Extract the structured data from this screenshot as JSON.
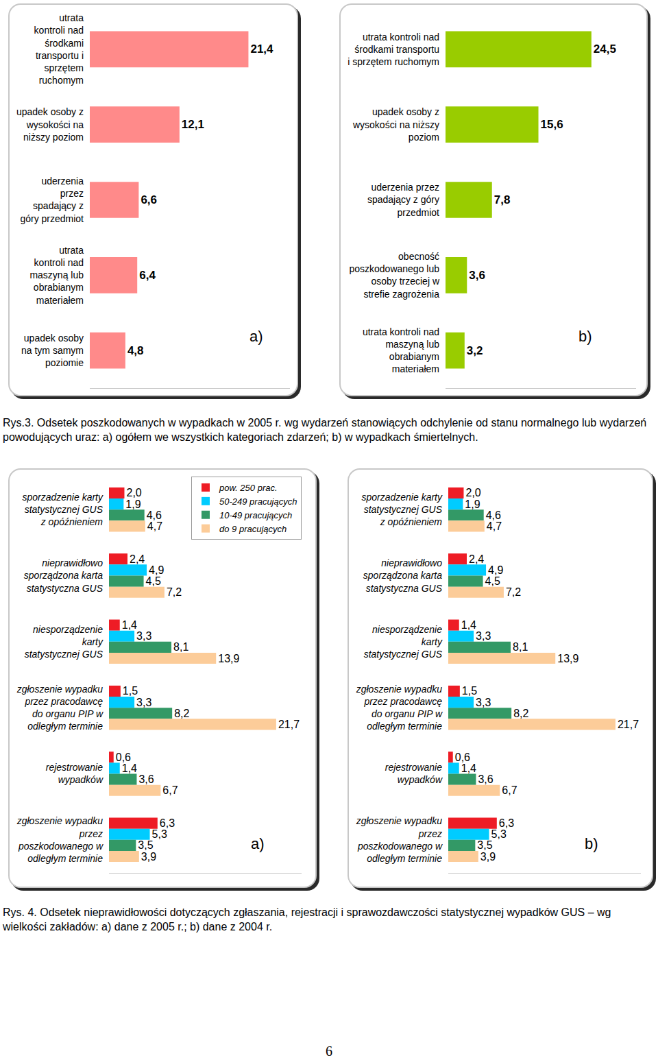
{
  "chart_data": [
    {
      "type": "bar",
      "orientation": "horizontal",
      "categories": [
        "utrata kontroli nad środkami transportu i sprzętem ruchomym",
        "upadek osoby z wysokości na niższy poziom",
        "uderzenia przez spadający z góry przedmiot",
        "utrata kontroli nad maszyną lub obrabianym materiałem",
        "upadek osoby na tym samym poziomie"
      ],
      "values": [
        21.4,
        12.1,
        6.6,
        6.4,
        4.8
      ],
      "value_labels": [
        "21,4",
        "12,1",
        "6,6",
        "6,4",
        "4,8"
      ],
      "color": "#ff8a8a",
      "xlim": [
        0,
        27
      ],
      "tick_labels": "y",
      "data_labels": true,
      "grid": false,
      "annotations": [
        "a)"
      ]
    },
    {
      "type": "bar",
      "orientation": "horizontal",
      "categories": [
        "utrata kontroli nad środkami transportu i sprzętem ruchomym",
        "upadek osoby z wysokości na niższy poziom",
        "uderzenia przez spadający z góry przedmiot",
        "obecność poszkodowanego lub osoby trzeciej w strefie zagrożenia",
        "utrata kontroli nad maszyną lub obrabianym materiałem"
      ],
      "values": [
        24.5,
        15.6,
        7.8,
        3.6,
        3.2
      ],
      "value_labels": [
        "24,5",
        "15,6",
        "7,8",
        "3,6",
        "3,2"
      ],
      "color": "#99cc00",
      "xlim": [
        0,
        32
      ],
      "tick_labels": "y",
      "data_labels": true,
      "grid": false,
      "annotations": [
        "b)"
      ]
    },
    {
      "type": "bar",
      "orientation": "horizontal",
      "categories": [
        "sporzadzenie karty statystycznej GUS z opóźnieniem",
        "nieprawidłowo sporządzona karta statystyczna GUS",
        "niesporządzenie karty statystycznej GUS",
        "zgłoszenie wypadku przez pracodawcę do organu PIP w odległym terminie",
        "rejestrowanie wypadków",
        "zgłoszenie wypadku przez poszkodowanego w odległym terminie"
      ],
      "series": [
        {
          "name": "pow. 250 prac.",
          "color": "#ee1c25",
          "values": [
            2.0,
            2.4,
            1.4,
            1.5,
            0.6,
            6.3
          ],
          "value_labels": [
            "2,0",
            "2,4",
            "1,4",
            "1,5",
            "0,6",
            "6,3"
          ]
        },
        {
          "name": "50-249 pracujących",
          "color": "#00ccff",
          "values": [
            1.9,
            4.9,
            3.3,
            3.3,
            1.4,
            5.3
          ],
          "value_labels": [
            "1,9",
            "4,9",
            "3,3",
            "3,3",
            "1,4",
            "5,3"
          ]
        },
        {
          "name": "10-49 pracujących",
          "color": "#339966",
          "values": [
            4.6,
            4.5,
            8.1,
            8.2,
            3.6,
            3.5
          ],
          "value_labels": [
            "4,6",
            "4,5",
            "8,1",
            "8,2",
            "3,6",
            "3,5"
          ]
        },
        {
          "name": "do 9 pracujących",
          "color": "#fccc99",
          "values": [
            4.7,
            7.2,
            13.9,
            21.7,
            6.7,
            3.9
          ],
          "value_labels": [
            "4,7",
            "7,2",
            "13,9",
            "21,7",
            "6,7",
            "3,9"
          ]
        }
      ],
      "xlim": [
        0,
        25
      ],
      "tick_labels": "y",
      "data_labels": true,
      "grid": false,
      "legend": "top right",
      "annotations": [
        "a)"
      ]
    },
    {
      "type": "bar",
      "orientation": "horizontal",
      "categories": [
        "sporzadzenie karty statystycznej GUS z opóźnieniem",
        "nieprawidłowo sporządzona karta statystyczna GUS",
        "niesporządzenie karty statystycznej GUS",
        "zgłoszenie wypadku przez pracodawcę do organu PIP w odległym terminie",
        "rejestrowanie wypadków",
        "zgłoszenie wypadku przez poszkodowanego w odległym terminie"
      ],
      "series": [
        {
          "color": "#ee1c25",
          "values": [
            2.0,
            2.4,
            1.4,
            1.5,
            0.6,
            6.3
          ],
          "value_labels": [
            "2,0",
            "2,4",
            "1,4",
            "1,5",
            "0,6",
            "6,3"
          ]
        },
        {
          "color": "#00ccff",
          "values": [
            1.9,
            4.9,
            3.3,
            3.3,
            1.4,
            5.3
          ],
          "value_labels": [
            "1,9",
            "4,9",
            "3,3",
            "3,3",
            "1,4",
            "5,3"
          ]
        },
        {
          "color": "#339966",
          "values": [
            4.6,
            4.5,
            8.1,
            8.2,
            3.6,
            3.5
          ],
          "value_labels": [
            "4,6",
            "4,5",
            "8,1",
            "8,2",
            "3,6",
            "3,5"
          ]
        },
        {
          "color": "#fccc99",
          "values": [
            4.7,
            7.2,
            13.9,
            21.7,
            6.7,
            3.9
          ],
          "value_labels": [
            "4,7",
            "7,2",
            "13,9",
            "21,7",
            "6,7",
            "3,9"
          ]
        }
      ],
      "xlim": [
        0,
        25
      ],
      "tick_labels": "y",
      "data_labels": true,
      "grid": false,
      "annotations": [
        "b)"
      ]
    }
  ],
  "captions": [
    "Rys.3. Odsetek poszkodowanych w wypadkach w 2005 r. wg wydarzeń stanowiących odchylenie od stanu normalnego lub wydarzeń powodujących uraz: a) ogółem we wszystkich kategoriach zdarzeń; b) w wypadkach śmiertelnych.",
    "Rys. 4. Odsetek nieprawidłowości dotyczących zgłaszania, rejestracji i sprawozdawczości statystycznej wypadków GUS – wg wielkości zakładów: a) dane z 2005 r.; b) dane z 2004 r."
  ],
  "page_number": "6"
}
